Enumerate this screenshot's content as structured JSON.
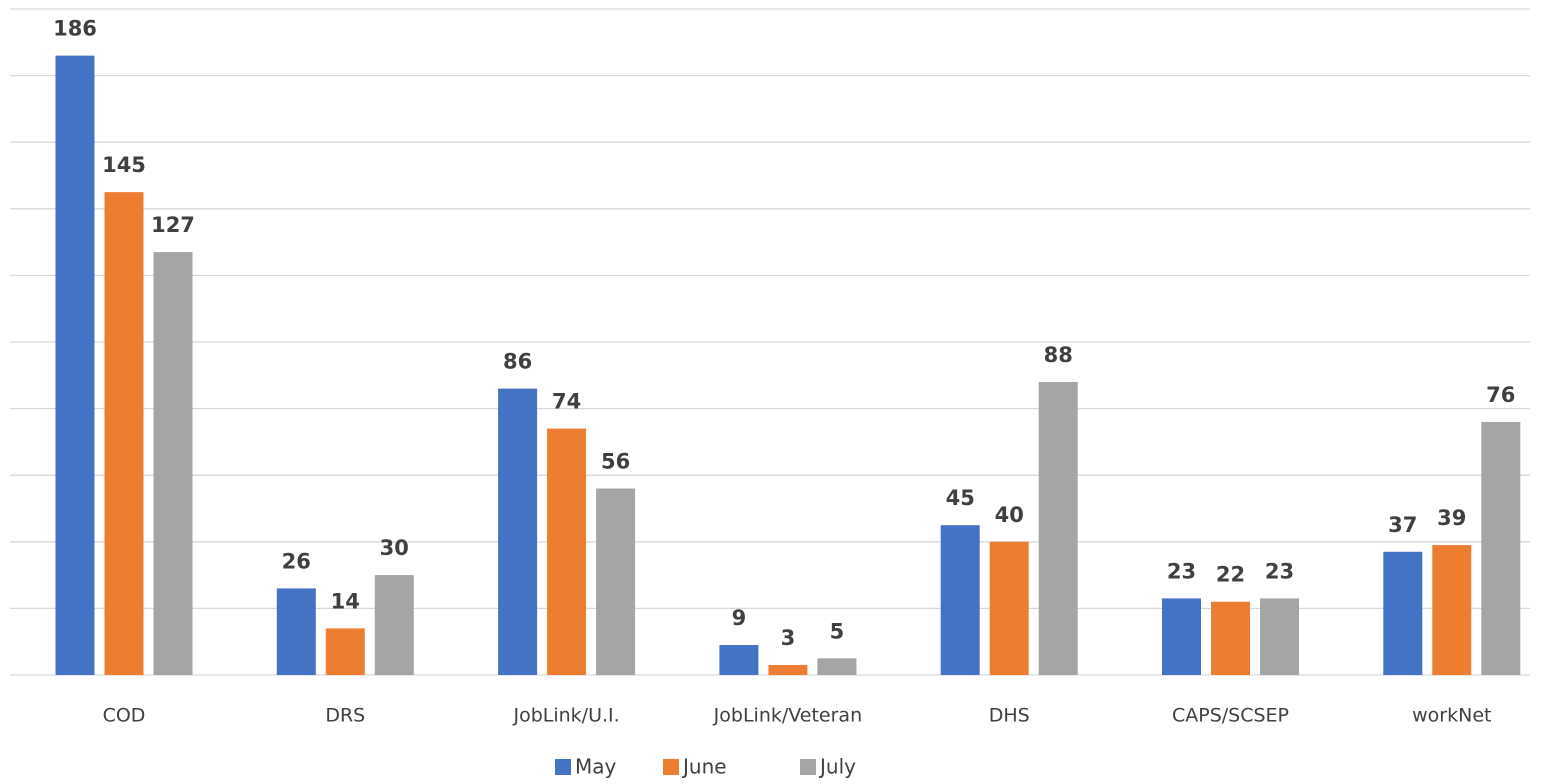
{
  "chart_data": {
    "type": "bar",
    "categories": [
      "COD",
      "DRS",
      "JobLink/U.I.",
      "JobLink/Veteran",
      "DHS",
      "CAPS/SCSEP",
      "workNet"
    ],
    "series": [
      {
        "name": "May",
        "color": "#4472c4",
        "values": [
          186,
          26,
          86,
          9,
          45,
          23,
          37
        ]
      },
      {
        "name": "June",
        "color": "#ed7d31",
        "values": [
          145,
          14,
          74,
          3,
          40,
          22,
          39
        ]
      },
      {
        "name": "July",
        "color": "#a5a5a5",
        "values": [
          127,
          30,
          56,
          5,
          88,
          23,
          76
        ]
      }
    ],
    "ylim": [
      0,
      200
    ],
    "yticks": [
      0,
      20,
      40,
      60,
      80,
      100,
      120,
      140,
      160,
      180,
      200
    ],
    "grid": true,
    "legend": "bottom"
  }
}
